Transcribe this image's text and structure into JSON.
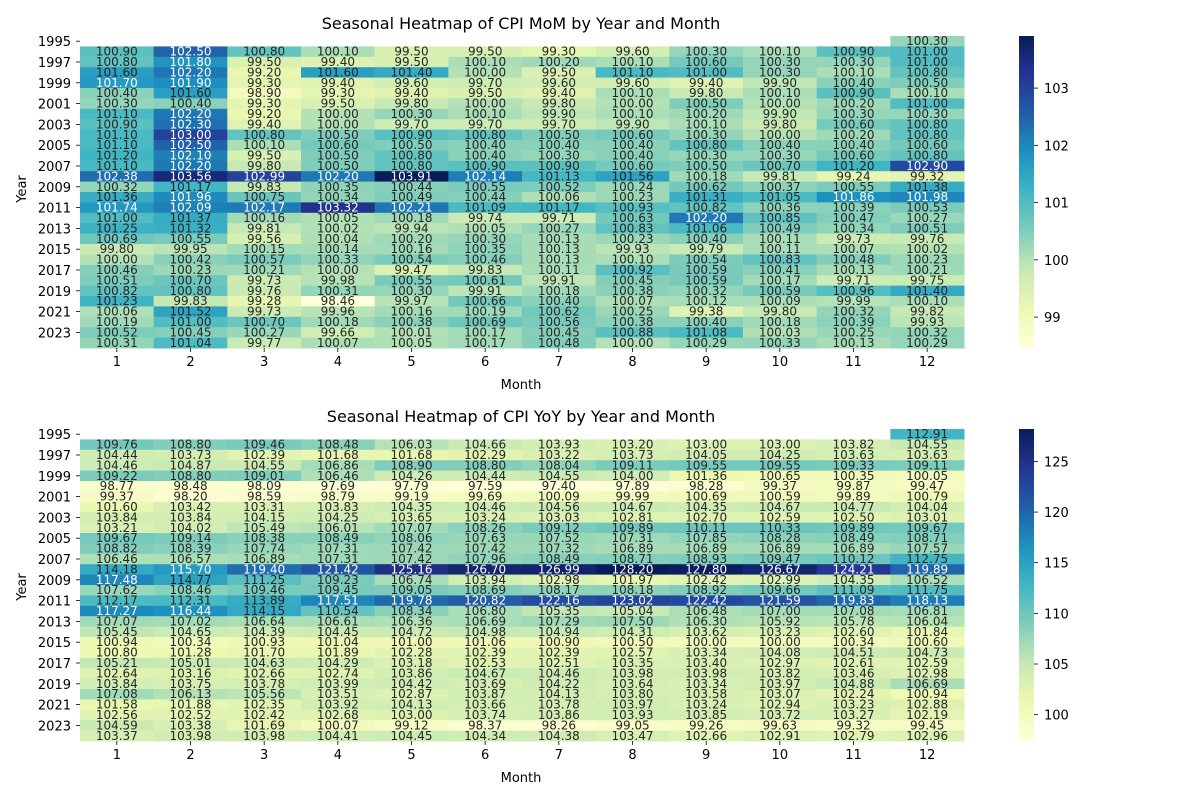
{
  "chart_data": [
    {
      "type": "heatmap",
      "title": "Seasonal Heatmap of CPI MoM by Year and Month",
      "xlabel": "Month",
      "ylabel": "Year",
      "x_categories": [
        "1",
        "2",
        "3",
        "4",
        "5",
        "6",
        "7",
        "8",
        "9",
        "10",
        "11",
        "12"
      ],
      "y_categories": [
        "1995",
        "1996",
        "1997",
        "1998",
        "1999",
        "2000",
        "2001",
        "2002",
        "2003",
        "2004",
        "2005",
        "2006",
        "2007",
        "2008",
        "2009",
        "2010",
        "2011",
        "2012",
        "2013",
        "2014",
        "2015",
        "2016",
        "2017",
        "2018",
        "2019",
        "2020",
        "2021",
        "2022",
        "2023",
        "2024"
      ],
      "y_tick_labels": [
        "1995",
        "",
        "1997",
        "",
        "1999",
        "",
        "2001",
        "",
        "2003",
        "",
        "2005",
        "",
        "2007",
        "",
        "2009",
        "",
        "2011",
        "",
        "2013",
        "",
        "2015",
        "",
        "2017",
        "",
        "2019",
        "",
        "2021",
        "",
        "2023",
        ""
      ],
      "colorbar": {
        "min": 98.46,
        "max": 103.91,
        "ticks": [
          "99",
          "100",
          "101",
          "102",
          "103"
        ]
      },
      "colormap": "YlGnBu",
      "values": [
        [
          null,
          null,
          null,
          null,
          null,
          null,
          null,
          null,
          null,
          null,
          null,
          100.3
        ],
        [
          100.9,
          102.5,
          100.8,
          100.1,
          99.5,
          99.5,
          99.3,
          99.6,
          100.3,
          100.1,
          100.9,
          101.0
        ],
        [
          100.8,
          101.8,
          99.5,
          99.4,
          99.5,
          100.1,
          100.2,
          100.1,
          100.6,
          100.3,
          100.3,
          101.0
        ],
        [
          101.6,
          102.2,
          99.2,
          101.6,
          101.4,
          100.0,
          99.5,
          101.1,
          101.0,
          100.3,
          100.1,
          100.8
        ],
        [
          101.7,
          101.9,
          99.3,
          99.4,
          99.6,
          99.7,
          99.6,
          99.6,
          99.4,
          99.9,
          100.4,
          100.5
        ],
        [
          100.4,
          101.6,
          98.9,
          99.3,
          99.4,
          99.5,
          99.4,
          100.1,
          99.8,
          100.1,
          100.9,
          100.1
        ],
        [
          100.3,
          100.4,
          99.3,
          99.5,
          99.8,
          100.0,
          99.8,
          100.0,
          100.5,
          100.0,
          100.2,
          101.0
        ],
        [
          101.1,
          102.2,
          99.2,
          100.0,
          100.3,
          100.1,
          99.9,
          100.1,
          100.2,
          99.9,
          100.3,
          100.3
        ],
        [
          100.9,
          102.3,
          99.4,
          100.0,
          99.7,
          99.7,
          99.7,
          99.9,
          100.1,
          99.8,
          100.6,
          100.8
        ],
        [
          101.1,
          103.0,
          100.8,
          100.5,
          100.9,
          100.8,
          100.5,
          100.6,
          100.3,
          100.0,
          100.2,
          100.8
        ],
        [
          101.1,
          102.5,
          100.1,
          100.6,
          100.5,
          100.4,
          100.4,
          100.4,
          100.8,
          100.4,
          100.4,
          100.6
        ],
        [
          101.2,
          102.1,
          99.5,
          100.5,
          100.8,
          100.4,
          100.3,
          100.4,
          100.3,
          100.3,
          100.6,
          100.8
        ],
        [
          101.1,
          102.2,
          99.8,
          100.5,
          100.8,
          100.9,
          100.9,
          100.6,
          100.5,
          100.7,
          101.2,
          102.9
        ],
        [
          102.38,
          103.56,
          102.99,
          102.2,
          103.91,
          102.14,
          101.13,
          101.56,
          100.18,
          99.81,
          99.24,
          99.32
        ],
        [
          100.32,
          101.17,
          99.83,
          100.35,
          100.44,
          100.55,
          100.52,
          100.24,
          100.62,
          100.37,
          100.55,
          101.38
        ],
        [
          101.36,
          101.96,
          100.75,
          100.34,
          100.49,
          100.44,
          100.06,
          100.23,
          101.31,
          101.05,
          101.86,
          101.98
        ],
        [
          101.74,
          102.09,
          102.17,
          103.32,
          102.21,
          101.09,
          101.17,
          100.93,
          100.82,
          100.36,
          100.39,
          100.53
        ],
        [
          101.0,
          101.37,
          100.16,
          100.05,
          100.18,
          99.74,
          99.71,
          100.63,
          102.2,
          100.85,
          100.47,
          100.27
        ],
        [
          101.25,
          101.32,
          99.81,
          100.02,
          99.94,
          100.05,
          100.27,
          100.83,
          101.06,
          100.49,
          100.34,
          100.51
        ],
        [
          100.69,
          100.55,
          99.56,
          100.04,
          100.2,
          100.3,
          100.13,
          100.23,
          100.4,
          100.11,
          99.73,
          99.76
        ],
        [
          99.8,
          99.95,
          100.15,
          100.14,
          100.16,
          100.35,
          100.13,
          99.93,
          99.79,
          100.11,
          100.07,
          100.02
        ],
        [
          100.0,
          100.42,
          100.57,
          100.33,
          100.54,
          100.46,
          100.13,
          100.1,
          100.54,
          100.83,
          100.48,
          100.23
        ],
        [
          100.46,
          100.23,
          100.21,
          100.0,
          99.47,
          99.83,
          100.11,
          100.92,
          100.59,
          100.41,
          100.13,
          100.21
        ],
        [
          100.51,
          100.7,
          99.73,
          99.98,
          100.55,
          100.61,
          99.91,
          100.45,
          100.59,
          100.17,
          99.71,
          99.75
        ],
        [
          100.82,
          100.8,
          99.76,
          100.31,
          100.3,
          99.91,
          100.18,
          100.38,
          100.32,
          100.59,
          100.96,
          101.4
        ],
        [
          101.23,
          99.83,
          99.28,
          98.46,
          99.97,
          100.66,
          100.4,
          100.07,
          100.12,
          100.09,
          99.99,
          100.1
        ],
        [
          100.06,
          101.52,
          99.73,
          99.96,
          100.16,
          100.19,
          100.62,
          100.25,
          99.38,
          99.8,
          100.32,
          99.82
        ],
        [
          100.19,
          101.0,
          100.7,
          100.18,
          100.38,
          100.69,
          100.56,
          100.38,
          100.4,
          100.18,
          100.39,
          99.93
        ],
        [
          100.52,
          100.45,
          100.27,
          99.66,
          100.01,
          100.17,
          100.45,
          100.88,
          101.08,
          100.03,
          100.25,
          100.32
        ],
        [
          100.31,
          101.04,
          99.77,
          100.07,
          100.05,
          100.17,
          100.48,
          100.0,
          100.29,
          100.33,
          100.13,
          100.29
        ]
      ]
    },
    {
      "type": "heatmap",
      "title": "Seasonal Heatmap of CPI YoY by Year and Month",
      "xlabel": "Month",
      "ylabel": "Year",
      "x_categories": [
        "1",
        "2",
        "3",
        "4",
        "5",
        "6",
        "7",
        "8",
        "9",
        "10",
        "11",
        "12"
      ],
      "y_categories": [
        "1995",
        "1996",
        "1997",
        "1998",
        "1999",
        "2000",
        "2001",
        "2002",
        "2003",
        "2004",
        "2005",
        "2006",
        "2007",
        "2008",
        "2009",
        "2010",
        "2011",
        "2012",
        "2013",
        "2014",
        "2015",
        "2016",
        "2017",
        "2018",
        "2019",
        "2020",
        "2021",
        "2022",
        "2023",
        "2024"
      ],
      "y_tick_labels": [
        "1995",
        "",
        "1997",
        "",
        "1999",
        "",
        "2001",
        "",
        "2003",
        "",
        "2005",
        "",
        "2007",
        "",
        "2009",
        "",
        "2011",
        "",
        "2013",
        "",
        "2015",
        "",
        "2017",
        "",
        "2019",
        "",
        "2021",
        "",
        "2023",
        ""
      ],
      "colorbar": {
        "min": 97.4,
        "max": 128.2,
        "ticks": [
          "100",
          "105",
          "110",
          "115",
          "120",
          "125"
        ]
      },
      "colormap": "YlGnBu",
      "values": [
        [
          null,
          null,
          null,
          null,
          null,
          null,
          null,
          null,
          null,
          null,
          null,
          112.91
        ],
        [
          109.76,
          108.8,
          109.46,
          108.48,
          106.03,
          104.66,
          103.93,
          103.2,
          103.0,
          103.0,
          103.82,
          104.55
        ],
        [
          104.44,
          103.73,
          102.39,
          101.68,
          101.68,
          102.29,
          103.22,
          103.73,
          104.05,
          104.25,
          103.63,
          103.63
        ],
        [
          104.46,
          104.87,
          104.55,
          106.86,
          108.9,
          108.8,
          108.04,
          109.11,
          109.55,
          109.55,
          109.33,
          109.11
        ],
        [
          109.22,
          108.8,
          109.01,
          106.46,
          104.26,
          104.44,
          104.55,
          104.0,
          101.36,
          100.65,
          100.35,
          100.05
        ],
        [
          98.77,
          98.48,
          98.09,
          97.69,
          97.79,
          97.59,
          97.4,
          97.89,
          98.28,
          99.37,
          99.87,
          99.47
        ],
        [
          99.37,
          98.2,
          98.59,
          98.79,
          99.19,
          99.69,
          100.09,
          99.99,
          100.69,
          100.59,
          99.89,
          100.79
        ],
        [
          101.6,
          103.42,
          103.31,
          103.83,
          104.35,
          104.46,
          104.56,
          104.67,
          104.35,
          104.67,
          104.77,
          104.04
        ],
        [
          103.84,
          103.84,
          104.15,
          104.25,
          103.65,
          103.24,
          103.03,
          102.81,
          102.7,
          102.59,
          102.5,
          103.01
        ],
        [
          103.21,
          104.02,
          105.49,
          106.01,
          107.07,
          108.26,
          109.12,
          109.89,
          110.11,
          110.33,
          109.89,
          109.67
        ],
        [
          109.67,
          109.14,
          108.38,
          108.49,
          108.06,
          107.63,
          107.52,
          107.31,
          107.85,
          108.28,
          108.49,
          108.71
        ],
        [
          108.82,
          108.39,
          107.74,
          107.31,
          107.42,
          107.42,
          107.32,
          106.89,
          106.89,
          106.89,
          106.89,
          107.57
        ],
        [
          106.46,
          106.57,
          106.89,
          107.31,
          107.42,
          107.96,
          108.49,
          108.71,
          108.93,
          109.47,
          110.12,
          112.75
        ],
        [
          114.18,
          115.7,
          119.4,
          121.42,
          125.16,
          126.7,
          126.99,
          128.2,
          127.8,
          126.67,
          124.21,
          119.89
        ],
        [
          117.48,
          114.77,
          111.25,
          109.23,
          106.74,
          103.94,
          102.98,
          101.97,
          102.42,
          102.99,
          104.35,
          106.52
        ],
        [
          107.62,
          108.46,
          109.46,
          109.45,
          109.05,
          108.69,
          108.17,
          108.18,
          108.92,
          109.66,
          111.09,
          111.75
        ],
        [
          112.17,
          112.31,
          113.89,
          117.51,
          119.78,
          120.82,
          122.16,
          123.02,
          122.42,
          121.59,
          119.83,
          118.13
        ],
        [
          117.27,
          116.44,
          114.15,
          110.54,
          108.34,
          106.8,
          105.35,
          105.04,
          106.48,
          107.0,
          107.08,
          106.81
        ],
        [
          107.07,
          107.02,
          106.64,
          106.61,
          106.36,
          106.69,
          107.29,
          107.5,
          106.3,
          105.92,
          105.78,
          106.04
        ],
        [
          105.45,
          104.65,
          104.39,
          104.45,
          104.72,
          104.98,
          104.94,
          104.31,
          103.62,
          103.23,
          102.6,
          101.84
        ],
        [
          100.94,
          100.34,
          100.93,
          101.04,
          101.0,
          101.06,
          100.9,
          100.5,
          100.0,
          100.0,
          100.34,
          100.6
        ],
        [
          100.8,
          101.28,
          101.7,
          101.89,
          102.28,
          102.39,
          102.39,
          102.57,
          103.34,
          104.08,
          104.51,
          104.73
        ],
        [
          105.21,
          105.01,
          104.63,
          104.29,
          103.18,
          102.53,
          102.51,
          103.35,
          103.4,
          102.97,
          102.61,
          102.59
        ],
        [
          102.64,
          103.16,
          102.66,
          102.74,
          103.86,
          104.67,
          104.46,
          103.98,
          103.98,
          103.82,
          103.46,
          102.98
        ],
        [
          103.84,
          103.75,
          103.78,
          103.99,
          104.42,
          103.69,
          104.22,
          103.64,
          103.34,
          103.97,
          104.88,
          106.69
        ],
        [
          107.08,
          106.13,
          105.56,
          103.51,
          102.87,
          103.87,
          104.13,
          103.8,
          103.58,
          103.07,
          102.24,
          100.94
        ],
        [
          101.58,
          101.88,
          102.35,
          103.92,
          104.13,
          103.66,
          103.78,
          103.97,
          103.24,
          102.94,
          103.23,
          102.88
        ],
        [
          102.56,
          102.52,
          102.42,
          102.68,
          103.0,
          103.74,
          103.86,
          103.93,
          103.85,
          103.72,
          103.27,
          102.19
        ],
        [
          104.59,
          103.38,
          101.69,
          100.07,
          99.12,
          98.37,
          98.26,
          99.05,
          99.26,
          99.63,
          99.32,
          99.45
        ],
        [
          103.37,
          103.98,
          103.98,
          104.41,
          104.45,
          104.34,
          104.38,
          103.47,
          102.66,
          102.91,
          102.79,
          102.96
        ]
      ]
    }
  ]
}
